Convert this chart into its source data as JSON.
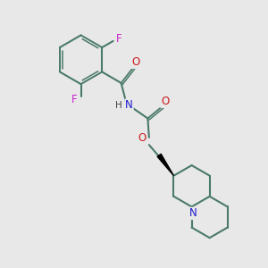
{
  "background_color": "#e8e8e8",
  "bond_color": "#4a7a6a",
  "N_color": "#1a1acc",
  "O_color": "#cc1a1a",
  "F_color": "#cc22cc",
  "H_color": "#444444",
  "figsize": [
    3.0,
    3.0
  ],
  "dpi": 100,
  "xlim": [
    0,
    10
  ],
  "ylim": [
    0,
    10
  ]
}
